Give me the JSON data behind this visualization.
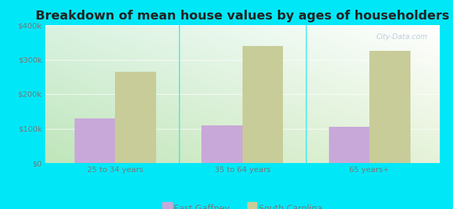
{
  "title": "Breakdown of mean house values by ages of householders",
  "categories": [
    "25 to 34 years",
    "35 to 64 years",
    "65 years+"
  ],
  "series": [
    {
      "name": "East Gaffney",
      "values": [
        130000,
        110000,
        105000
      ],
      "color": "#c8a8d8"
    },
    {
      "name": "South Carolina",
      "values": [
        265000,
        340000,
        325000
      ],
      "color": "#c8cc98"
    }
  ],
  "ylim": [
    0,
    400000
  ],
  "ytick_labels": [
    "$0",
    "$100k",
    "$200k",
    "$300k",
    "$400k"
  ],
  "ytick_values": [
    0,
    100000,
    200000,
    300000,
    400000
  ],
  "outer_bg": "#00e8f8",
  "title_fontsize": 13,
  "tick_label_color": "#777777",
  "bar_width": 0.32,
  "legend_fontsize": 9,
  "watermark": "City-Data.com"
}
